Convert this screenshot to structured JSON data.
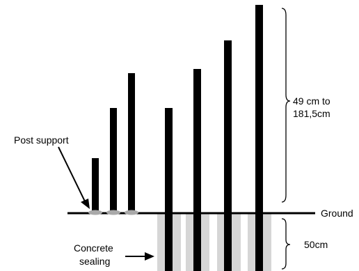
{
  "labels": {
    "post_support": "Post support",
    "height_range_line1": "49 cm to",
    "height_range_line2": "181,5cm",
    "ground": "Ground",
    "depth": "50cm",
    "concrete_line1": "Concrete",
    "concrete_line2": "sealing"
  },
  "colors": {
    "post": "#000000",
    "concrete": "#d6d6d6",
    "support": "#a9a9a9",
    "ground": "#000000"
  }
}
